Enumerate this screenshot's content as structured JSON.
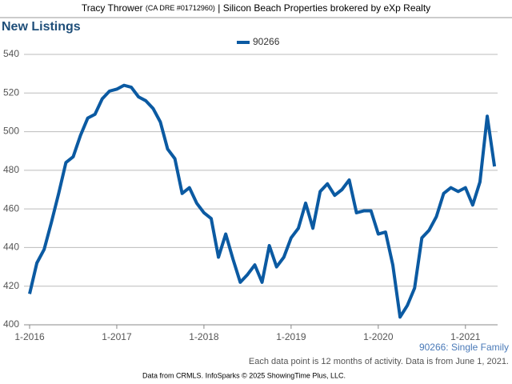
{
  "chart_data": {
    "type": "line",
    "header": {
      "name": "Tracy Thrower",
      "license": "(CA DRE #01712960)",
      "company": "| Silicon Beach Properties brokered by eXp Realty"
    },
    "title": "New Listings",
    "categories": [
      "1-2016",
      null,
      null,
      null,
      null,
      null,
      null,
      null,
      null,
      null,
      null,
      null,
      "1-2017",
      null,
      null,
      null,
      null,
      null,
      null,
      null,
      null,
      null,
      null,
      null,
      "1-2018",
      null,
      null,
      null,
      null,
      null,
      null,
      null,
      null,
      null,
      null,
      null,
      "1-2019",
      null,
      null,
      null,
      null,
      null,
      null,
      null,
      null,
      null,
      null,
      null,
      "1-2020",
      null,
      null,
      null,
      null,
      null,
      null,
      null,
      null,
      null,
      null,
      null,
      "1-2021",
      null,
      null,
      null,
      null
    ],
    "series": [
      {
        "name": "90266",
        "color": "#0b5aa2",
        "values": [
          416,
          432,
          439,
          453,
          468,
          484,
          487,
          498,
          507,
          509,
          517,
          521,
          522,
          524,
          523,
          518,
          516,
          512,
          505,
          491,
          486,
          468,
          471,
          463,
          458,
          455,
          435,
          447,
          434,
          422,
          426,
          431,
          422,
          441,
          430,
          435,
          445,
          450,
          463,
          450,
          469,
          473,
          467,
          470,
          475,
          458,
          459,
          459,
          447,
          448,
          431,
          404,
          410,
          419,
          445,
          449,
          456,
          468,
          471,
          469,
          471,
          462,
          474,
          508,
          482
        ]
      }
    ],
    "ylim": [
      400,
      540
    ],
    "yticks": [
      400,
      420,
      440,
      460,
      480,
      500,
      520,
      540
    ],
    "grid": true,
    "legend": "top",
    "segment_note": "90266: Single Family",
    "note": "Each data point is 12 months of activity. Data is from June 1, 2021.",
    "source": "Data from CRMLS. InfoSparks © 2025 ShowingTime Plus, LLC."
  }
}
